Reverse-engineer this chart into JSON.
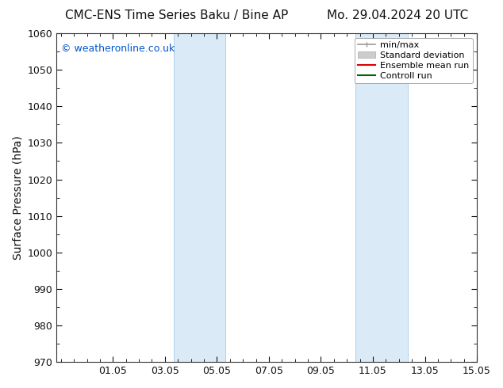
{
  "title": "CMC-ENS Time Series Baku / Bine AP      Mo. 29.04.2024 20 UTC",
  "title_left": "CMC-ENS Time Series Baku / Bine AP",
  "title_right": "Mo. 29.04.2024 20 UTC",
  "ylabel": "Surface Pressure (hPa)",
  "ylim": [
    970,
    1060
  ],
  "yticks": [
    970,
    980,
    990,
    1000,
    1010,
    1020,
    1030,
    1040,
    1050,
    1060
  ],
  "xtick_labels": [
    "01.05",
    "03.05",
    "05.05",
    "07.05",
    "09.05",
    "11.05",
    "13.05",
    "15.05"
  ],
  "xtick_positions": [
    1.0,
    3.0,
    5.0,
    7.0,
    9.0,
    11.0,
    13.0,
    15.0
  ],
  "x_min": -1.1667,
  "x_max": 14.8333,
  "shaded_bands": [
    {
      "x_start": 3.333,
      "x_end": 5.333
    },
    {
      "x_start": 10.333,
      "x_end": 12.333
    }
  ],
  "shaded_color": "#daeaf7",
  "shaded_edge_color": "#b0cfe8",
  "watermark_text": "© weatheronline.co.uk",
  "watermark_color": "#0055cc",
  "background_color": "#ffffff",
  "legend_items": [
    {
      "label": "min/max",
      "color": "#999999",
      "lw": 1.2,
      "style": "minmax"
    },
    {
      "label": "Standard deviation",
      "color": "#cccccc",
      "lw": 8,
      "style": "bar"
    },
    {
      "label": "Ensemble mean run",
      "color": "#dd0000",
      "lw": 1.5,
      "style": "line"
    },
    {
      "label": "Controll run",
      "color": "#006600",
      "lw": 1.5,
      "style": "line"
    }
  ],
  "title_fontsize": 11,
  "axis_label_fontsize": 10,
  "tick_fontsize": 9,
  "watermark_fontsize": 9,
  "legend_fontsize": 8
}
